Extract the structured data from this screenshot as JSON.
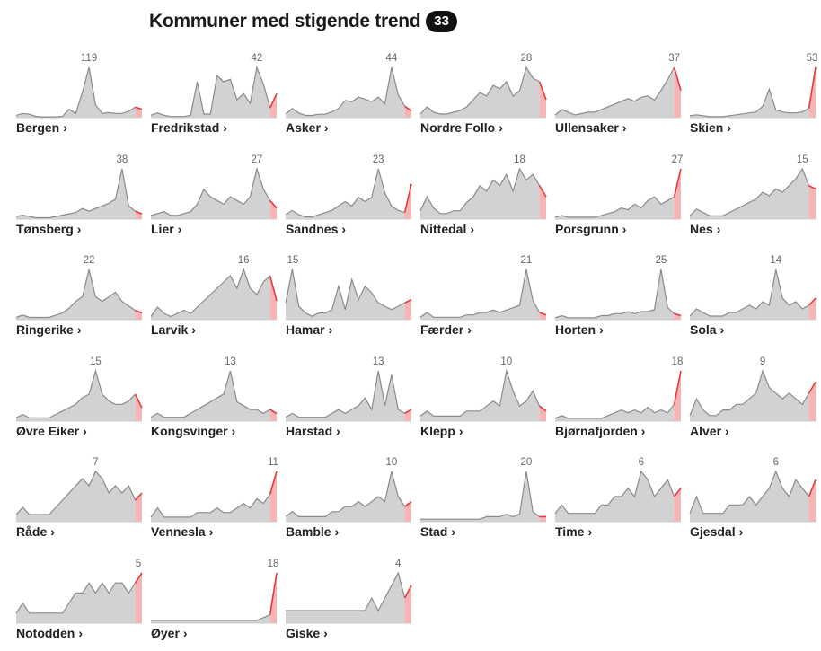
{
  "header": {
    "title": "Kommuner med stigende trend",
    "count": "33"
  },
  "colors": {
    "area": "#d2d2d2",
    "line": "#8a8a8a",
    "trend": "#e8383b",
    "trend_fill": "#f6b4b5"
  },
  "chart_data": {
    "type": "area",
    "title": "Kommuner med stigende trend",
    "note": "small-multiple sparklines; peak label printed above each chart",
    "series": [
      {
        "name": "Bergen",
        "peak": 119,
        "values": [
          5,
          10,
          8,
          3,
          2,
          2,
          2,
          3,
          20,
          10,
          60,
          119,
          30,
          10,
          12,
          10,
          10,
          15,
          25,
          20
        ]
      },
      {
        "name": "Fredrikstad",
        "peak": 42,
        "values": [
          2,
          4,
          2,
          1,
          1,
          1,
          2,
          30,
          3,
          3,
          35,
          30,
          32,
          15,
          20,
          12,
          42,
          28,
          8,
          20
        ]
      },
      {
        "name": "Asker",
        "peak": 44,
        "values": [
          3,
          8,
          4,
          2,
          2,
          3,
          3,
          5,
          8,
          15,
          14,
          18,
          16,
          14,
          18,
          12,
          44,
          20,
          10,
          6
        ]
      },
      {
        "name": "Nordre Follo",
        "peak": 28,
        "values": [
          2,
          6,
          3,
          2,
          2,
          3,
          4,
          6,
          10,
          14,
          12,
          18,
          16,
          20,
          12,
          15,
          28,
          22,
          20,
          10
        ]
      },
      {
        "name": "Ullensaker",
        "peak": 37,
        "values": [
          2,
          6,
          4,
          2,
          3,
          4,
          4,
          6,
          8,
          10,
          12,
          14,
          12,
          15,
          16,
          13,
          20,
          28,
          37,
          20
        ]
      },
      {
        "name": "Skien",
        "peak": 53,
        "values": [
          2,
          3,
          2,
          1,
          1,
          1,
          2,
          3,
          4,
          5,
          6,
          12,
          30,
          8,
          6,
          5,
          5,
          6,
          10,
          53
        ]
      },
      {
        "name": "Tønsberg",
        "peak": 38,
        "values": [
          2,
          3,
          2,
          1,
          1,
          1,
          2,
          3,
          4,
          5,
          8,
          6,
          8,
          10,
          12,
          15,
          38,
          10,
          6,
          4
        ]
      },
      {
        "name": "Lier",
        "peak": 27,
        "values": [
          2,
          3,
          4,
          2,
          2,
          3,
          4,
          8,
          16,
          12,
          10,
          8,
          12,
          10,
          8,
          12,
          27,
          16,
          10,
          6
        ]
      },
      {
        "name": "Sandnes",
        "peak": 23,
        "values": [
          2,
          4,
          2,
          1,
          1,
          2,
          3,
          4,
          6,
          8,
          6,
          10,
          8,
          10,
          23,
          12,
          6,
          4,
          3,
          16
        ]
      },
      {
        "name": "Nittedal",
        "peak": 18,
        "values": [
          3,
          8,
          4,
          2,
          2,
          3,
          3,
          6,
          8,
          12,
          10,
          14,
          12,
          16,
          10,
          18,
          14,
          16,
          12,
          8
        ]
      },
      {
        "name": "Porsgrunn",
        "peak": 27,
        "values": [
          1,
          2,
          1,
          1,
          1,
          1,
          1,
          2,
          3,
          4,
          6,
          5,
          8,
          6,
          10,
          12,
          8,
          10,
          12,
          27
        ]
      },
      {
        "name": "Nes",
        "peak": 15,
        "values": [
          1,
          3,
          2,
          1,
          1,
          1,
          2,
          3,
          4,
          5,
          6,
          8,
          7,
          9,
          8,
          10,
          12,
          15,
          10,
          9
        ]
      },
      {
        "name": "Ringerike",
        "peak": 22,
        "values": [
          1,
          2,
          1,
          1,
          1,
          1,
          2,
          3,
          5,
          8,
          10,
          22,
          10,
          8,
          10,
          12,
          8,
          6,
          4,
          3
        ]
      },
      {
        "name": "Larvik",
        "peak": 16,
        "values": [
          1,
          4,
          2,
          1,
          2,
          3,
          2,
          4,
          6,
          8,
          10,
          12,
          14,
          10,
          16,
          10,
          8,
          12,
          14,
          6
        ]
      },
      {
        "name": "Hamar",
        "peak": 15,
        "values": [
          5,
          15,
          4,
          2,
          1,
          2,
          2,
          3,
          10,
          3,
          12,
          6,
          10,
          8,
          5,
          4,
          3,
          4,
          5,
          6
        ]
      },
      {
        "name": "Færder",
        "peak": 21,
        "values": [
          1,
          3,
          1,
          1,
          1,
          1,
          1,
          2,
          2,
          3,
          3,
          4,
          3,
          4,
          5,
          6,
          21,
          8,
          3,
          2
        ]
      },
      {
        "name": "Horten",
        "peak": 25,
        "values": [
          1,
          2,
          1,
          1,
          1,
          1,
          1,
          2,
          2,
          3,
          3,
          4,
          3,
          4,
          4,
          5,
          25,
          6,
          3,
          2
        ]
      },
      {
        "name": "Sola",
        "peak": 14,
        "values": [
          1,
          3,
          2,
          1,
          1,
          1,
          2,
          2,
          3,
          4,
          3,
          5,
          4,
          14,
          6,
          4,
          5,
          3,
          4,
          6
        ]
      },
      {
        "name": "Øvre Eiker",
        "peak": 15,
        "values": [
          1,
          2,
          1,
          1,
          1,
          1,
          2,
          3,
          4,
          5,
          7,
          8,
          15,
          8,
          6,
          5,
          5,
          6,
          8,
          4
        ]
      },
      {
        "name": "Kongsvinger",
        "peak": 13,
        "values": [
          1,
          2,
          1,
          1,
          1,
          1,
          2,
          3,
          4,
          5,
          6,
          7,
          13,
          5,
          4,
          3,
          3,
          2,
          3,
          2
        ]
      },
      {
        "name": "Harstad",
        "peak": 13,
        "values": [
          1,
          2,
          1,
          1,
          1,
          1,
          1,
          2,
          3,
          2,
          3,
          4,
          6,
          3,
          13,
          4,
          12,
          3,
          2,
          3
        ]
      },
      {
        "name": "Klepp",
        "peak": 10,
        "values": [
          1,
          2,
          1,
          1,
          1,
          1,
          1,
          2,
          2,
          2,
          3,
          4,
          3,
          10,
          6,
          3,
          4,
          6,
          3,
          2
        ]
      },
      {
        "name": "Bjørnafjorden",
        "peak": 18,
        "values": [
          1,
          2,
          1,
          1,
          1,
          1,
          1,
          1,
          2,
          3,
          4,
          3,
          4,
          3,
          5,
          3,
          4,
          3,
          6,
          18
        ]
      },
      {
        "name": "Alver",
        "peak": 9,
        "values": [
          1,
          4,
          2,
          1,
          1,
          2,
          2,
          3,
          3,
          4,
          5,
          9,
          6,
          5,
          4,
          5,
          4,
          3,
          5,
          7
        ]
      },
      {
        "name": "Råde",
        "peak": 7,
        "values": [
          1,
          2,
          1,
          1,
          1,
          1,
          2,
          3,
          4,
          5,
          6,
          5,
          7,
          6,
          4,
          5,
          4,
          5,
          3,
          4
        ]
      },
      {
        "name": "Vennesla",
        "peak": 11,
        "values": [
          1,
          3,
          1,
          1,
          1,
          1,
          1,
          2,
          2,
          2,
          3,
          2,
          2,
          3,
          4,
          3,
          5,
          4,
          6,
          11
        ]
      },
      {
        "name": "Bamble",
        "peak": 10,
        "values": [
          1,
          2,
          1,
          1,
          1,
          1,
          1,
          2,
          2,
          3,
          3,
          4,
          3,
          4,
          5,
          4,
          10,
          5,
          3,
          4
        ]
      },
      {
        "name": "Stad",
        "peak": 20,
        "values": [
          1,
          1,
          1,
          1,
          1,
          1,
          1,
          1,
          1,
          1,
          2,
          2,
          2,
          3,
          2,
          3,
          20,
          4,
          2,
          2
        ]
      },
      {
        "name": "Time",
        "peak": 6,
        "values": [
          1,
          2,
          1,
          1,
          1,
          1,
          1,
          2,
          2,
          3,
          3,
          4,
          3,
          6,
          5,
          3,
          4,
          5,
          3,
          4
        ]
      },
      {
        "name": "Gjesdal",
        "peak": 6,
        "values": [
          1,
          3,
          1,
          1,
          1,
          1,
          2,
          2,
          2,
          3,
          2,
          3,
          4,
          6,
          4,
          3,
          5,
          4,
          3,
          5
        ]
      },
      {
        "name": "Notodden",
        "peak": 5,
        "values": [
          1,
          2,
          1,
          1,
          1,
          1,
          1,
          1,
          2,
          3,
          3,
          4,
          3,
          4,
          3,
          4,
          4,
          3,
          4,
          5
        ]
      },
      {
        "name": "Øyer",
        "peak": 18,
        "values": [
          1,
          1,
          1,
          1,
          1,
          1,
          1,
          1,
          1,
          1,
          1,
          1,
          1,
          1,
          1,
          1,
          1,
          2,
          3,
          18
        ]
      },
      {
        "name": "Giske",
        "peak": 4,
        "values": [
          1,
          1,
          1,
          1,
          1,
          1,
          1,
          1,
          1,
          1,
          1,
          1,
          1,
          2,
          1,
          2,
          3,
          4,
          2,
          3
        ]
      }
    ]
  }
}
